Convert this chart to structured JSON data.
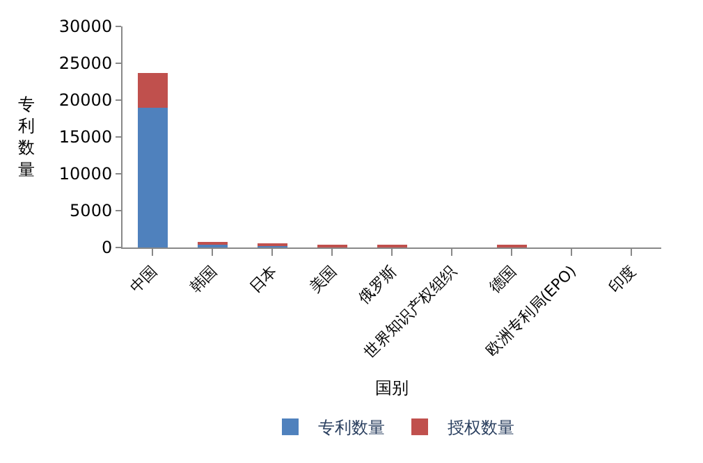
{
  "chart_data": {
    "type": "bar",
    "stacked": true,
    "xlabel": "国别",
    "ylabel": "专利数量",
    "categories": [
      "中国",
      "韩国",
      "日本",
      "美国",
      "俄罗斯",
      "世界知识产权组织",
      "德国",
      "欧洲专利局(EPO)",
      "印度"
    ],
    "series": [
      {
        "name": "专利数量",
        "color": "#4f81bd",
        "values": [
          19000,
          500,
          300,
          100,
          100,
          0,
          100,
          0,
          0
        ]
      },
      {
        "name": "授权数量",
        "color": "#c0504d",
        "values": [
          4700,
          100,
          100,
          100,
          100,
          0,
          100,
          0,
          0
        ]
      }
    ],
    "ylim": [
      0,
      30000
    ],
    "yticks": [
      0,
      5000,
      10000,
      15000,
      20000,
      25000,
      30000
    ],
    "legend": "bottom"
  }
}
